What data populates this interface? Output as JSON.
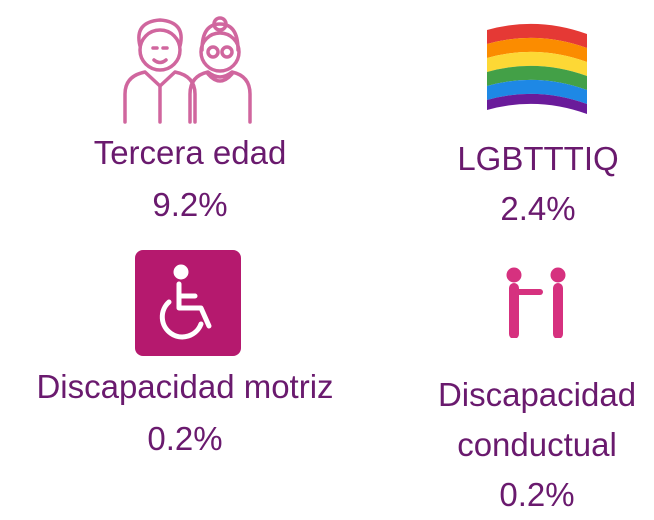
{
  "items": [
    {
      "label": "Tercera edad",
      "value": "9.2%"
    },
    {
      "label": "LGBTTTIQ",
      "value": "2.4%"
    },
    {
      "label": "Discapacidad motriz",
      "value": "0.2%"
    },
    {
      "label": "Discapacidad conductual",
      "value": "0.2%"
    }
  ]
}
